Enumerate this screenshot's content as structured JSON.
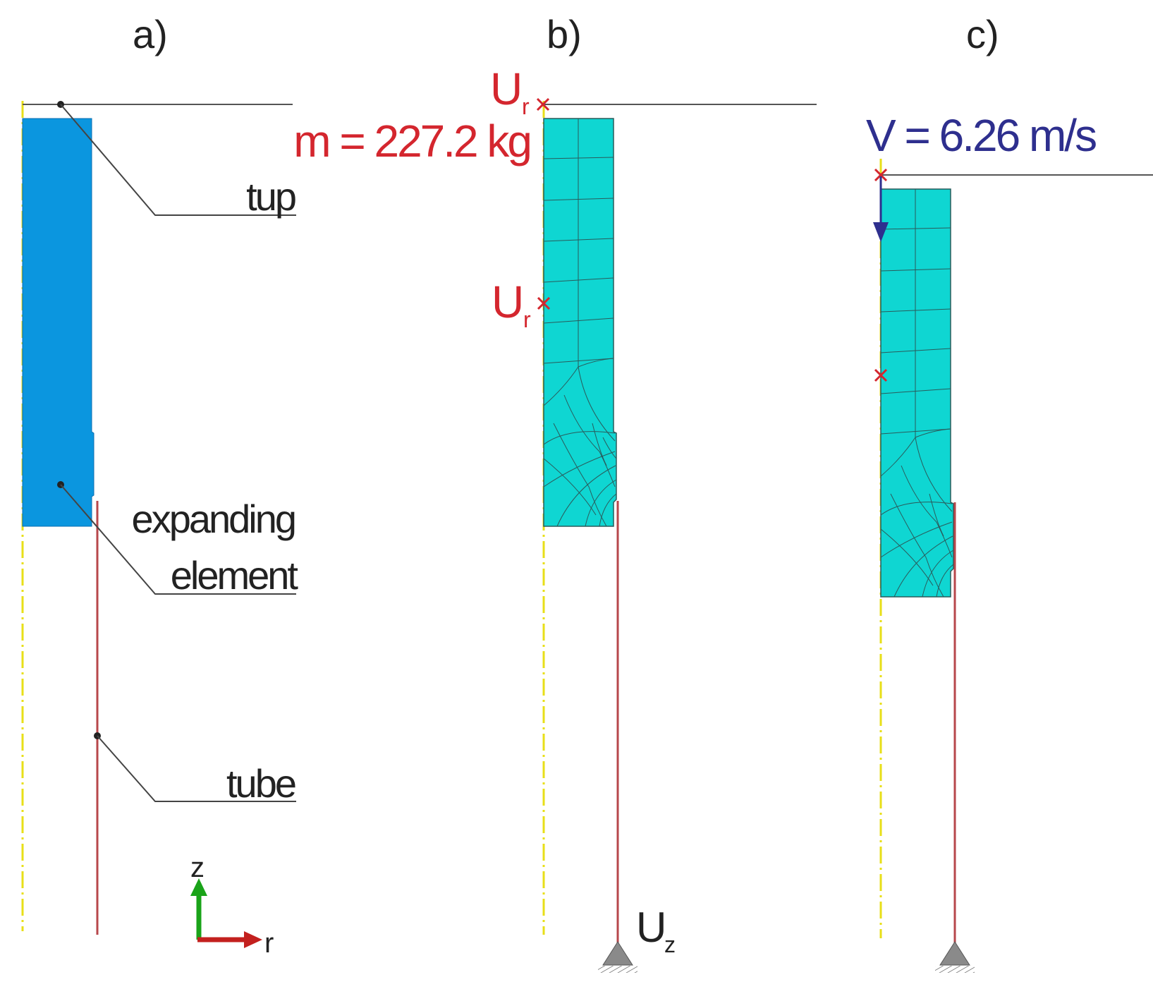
{
  "panels": {
    "a": {
      "label": "a)",
      "callouts": {
        "tup": "tup",
        "element_line1": "expanding",
        "element_line2": "element",
        "tube": "tube"
      },
      "axes": {
        "z": "z",
        "r": "r"
      }
    },
    "b": {
      "label": "b)",
      "mass_label": "m = 227.2 kg",
      "bc_radial": "U",
      "bc_radial_sub": "r",
      "bc_axial": "U",
      "bc_axial_sub": "z"
    },
    "c": {
      "label": "c)",
      "velocity_label": "V = 6.26 m/s"
    }
  },
  "colors": {
    "tup_solid": "#0b96df",
    "mesh_fill": "#0fd6d2",
    "tube_line": "#b7474b",
    "axis_dash": "#e8df18",
    "bc_red": "#d4262e",
    "velocity_blue": "#2e2f8e",
    "axis_green": "#1aa319",
    "axis_red": "#c3201e"
  }
}
